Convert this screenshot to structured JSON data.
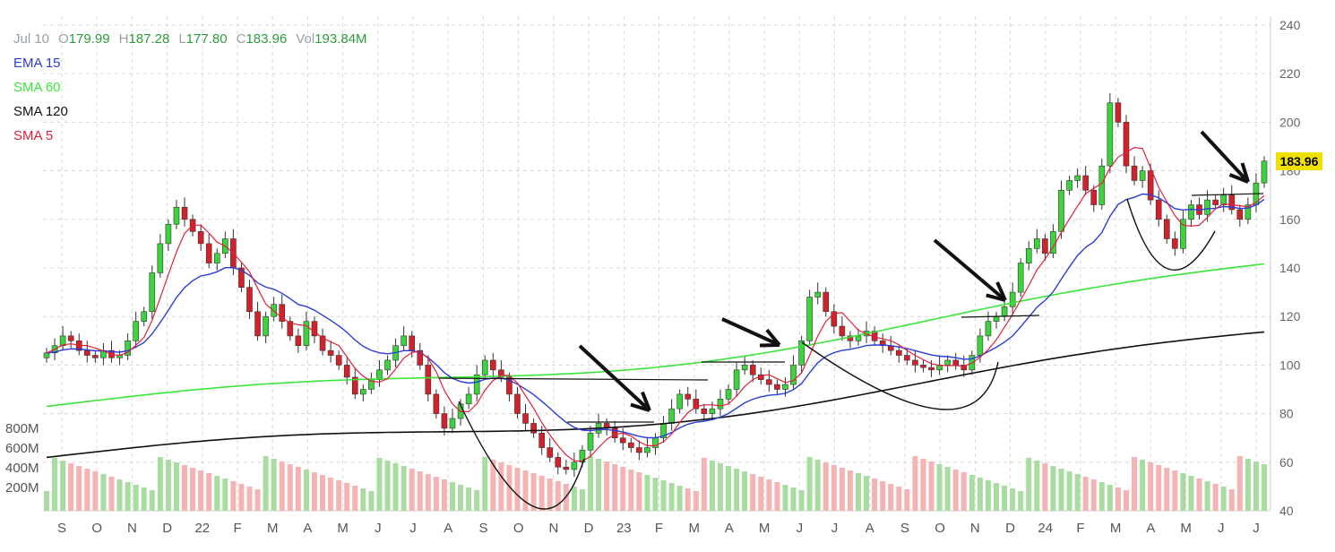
{
  "legend": {
    "date": "Jul 10",
    "open_label": "O",
    "open": "179.99",
    "high_label": "H",
    "high": "187.28",
    "low_label": "L",
    "low": "177.80",
    "close_label": "C",
    "close": "183.96",
    "vol_label": "Vol",
    "vol": "193.84M",
    "indicators": [
      {
        "label": "EMA 15",
        "color": "#2b3dd6"
      },
      {
        "label": "SMA 60",
        "color": "#39e639"
      },
      {
        "label": "SMA 120",
        "color": "#111111"
      },
      {
        "label": "SMA 5",
        "color": "#e0203a"
      }
    ]
  },
  "last_price": "183.96",
  "volume_axis_labels": [
    "800M",
    "600M",
    "400M",
    "200M"
  ],
  "chart_data": {
    "type": "candlestick",
    "y_ticks": [
      40,
      60,
      80,
      100,
      120,
      140,
      160,
      180,
      200,
      220,
      240
    ],
    "ylim": [
      40,
      240
    ],
    "x_ticks": [
      "S",
      "O",
      "N",
      "D",
      "22",
      "F",
      "M",
      "A",
      "M",
      "J",
      "J",
      "A",
      "S",
      "O",
      "N",
      "D",
      "23",
      "F",
      "M",
      "A",
      "M",
      "J",
      "J",
      "A",
      "S",
      "O",
      "N",
      "D",
      "24",
      "F",
      "M",
      "A",
      "M",
      "J",
      "J"
    ],
    "colors": {
      "up": "#3cd43c",
      "down": "#d4202a",
      "vol_up": "#a8dca0",
      "vol_down": "#f4b4b4"
    },
    "candles_close": [
      105,
      108,
      112,
      110,
      106,
      104,
      103,
      106,
      103,
      104,
      110,
      118,
      122,
      138,
      150,
      158,
      165,
      160,
      155,
      150,
      142,
      146,
      152,
      140,
      132,
      122,
      112,
      120,
      125,
      118,
      112,
      108,
      118,
      112,
      106,
      104,
      100,
      95,
      88,
      90,
      94,
      98,
      102,
      108,
      112,
      106,
      100,
      88,
      80,
      74,
      78,
      84,
      88,
      96,
      102,
      98,
      95,
      88,
      80,
      76,
      72,
      66,
      62,
      58,
      57,
      60,
      65,
      72,
      76,
      74,
      70,
      68,
      66,
      64,
      66,
      70,
      76,
      82,
      88,
      86,
      82,
      80,
      82,
      86,
      90,
      98,
      100,
      96,
      94,
      92,
      90,
      92,
      100,
      110,
      128,
      130,
      122,
      116,
      112,
      110,
      112,
      114,
      110,
      108,
      106,
      104,
      102,
      100,
      99,
      98,
      100,
      102,
      100,
      98,
      104,
      112,
      118,
      120,
      124,
      130,
      142,
      148,
      152,
      146,
      155,
      172,
      176,
      178,
      172,
      166,
      182,
      208,
      200,
      182,
      176,
      180,
      168,
      160,
      152,
      148,
      160,
      166,
      162,
      168,
      166,
      170,
      164,
      160,
      166,
      175,
      184
    ],
    "sma60_range": [
      83,
      140
    ],
    "sma120_range": [
      62,
      112
    ]
  }
}
